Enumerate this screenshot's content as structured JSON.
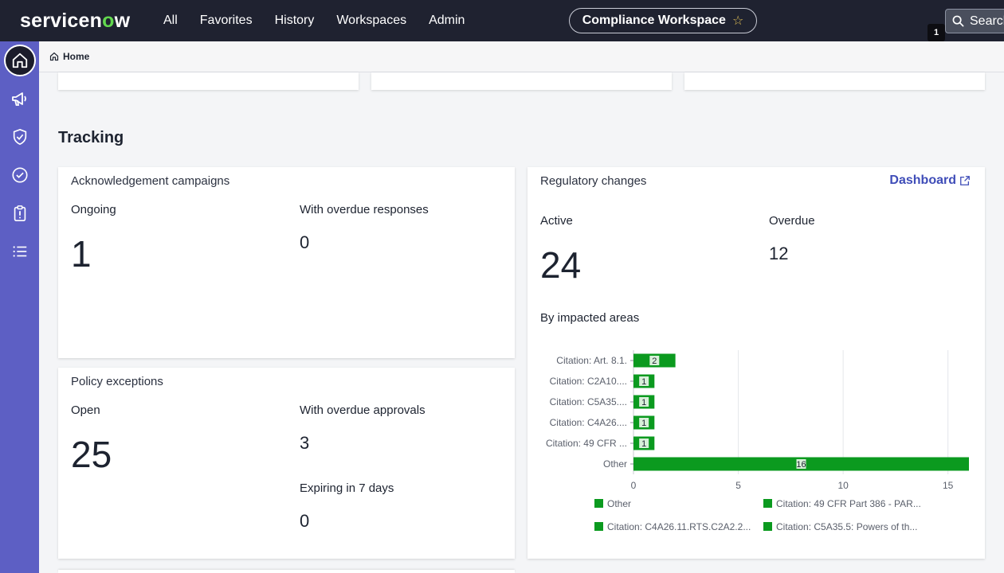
{
  "header": {
    "logo_main": "servicen",
    "logo_o": "o",
    "logo_end": "w",
    "nav": [
      "All",
      "Favorites",
      "History",
      "Workspaces",
      "Admin"
    ],
    "workspace_label": "Compliance Workspace",
    "search_label": "Search",
    "notification_count": "1"
  },
  "sidebar": {
    "items": [
      "home-icon",
      "megaphone-icon",
      "shield-check-icon",
      "check-circle-icon",
      "clipboard-alert-icon",
      "list-icon"
    ]
  },
  "breadcrumb": {
    "label": "Home"
  },
  "section": {
    "title": "Tracking"
  },
  "ack": {
    "title": "Acknowledgement campaigns",
    "ongoing_label": "Ongoing",
    "ongoing_value": "1",
    "overdue_label": "With overdue responses",
    "overdue_value": "0"
  },
  "policy": {
    "title": "Policy exceptions",
    "open_label": "Open",
    "open_value": "25",
    "overdue_label": "With overdue approvals",
    "overdue_value": "3",
    "expiring_label": "Expiring in 7 days",
    "expiring_value": "0"
  },
  "reg": {
    "title": "Regulatory changes",
    "dashboard_link": "Dashboard",
    "active_label": "Active",
    "active_value": "24",
    "overdue_label": "Overdue",
    "overdue_value": "12",
    "chart_title": "By impacted areas"
  },
  "chart_data": {
    "type": "bar",
    "orientation": "horizontal",
    "categories": [
      "Citation: Art. 8.1.",
      "Citation: C2A10....",
      "Citation: C5A35....",
      "Citation: C4A26....",
      "Citation: 49 CFR ...",
      "Other"
    ],
    "values": [
      2,
      1,
      1,
      1,
      1,
      16
    ],
    "xlim": [
      0,
      16
    ],
    "xticks": [
      0,
      5,
      10,
      15
    ],
    "grid": true,
    "bar_color": "#0b9a1f",
    "legend_position": "bottom",
    "legend": [
      "Other",
      "Citation: 49 CFR Part 386 - PAR...",
      "Citation: C4A26.11.RTS.C2A2.2...",
      "Citation: C5A35.5: Powers of th..."
    ]
  },
  "colors": {
    "topbar": "#1f2230",
    "sidebar": "#5d5fc4",
    "accent_link": "#3f4db8",
    "logo_o": "#62d84e"
  }
}
